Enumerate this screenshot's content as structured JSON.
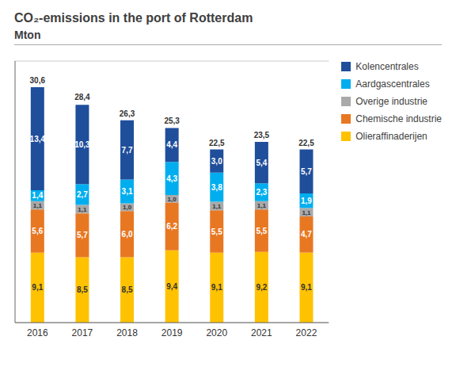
{
  "chart_data": {
    "type": "bar",
    "title": "CO₂-emissions in the port of Rotterdam",
    "subtitle": "Mton",
    "categories": [
      "2016",
      "2017",
      "2018",
      "2019",
      "2020",
      "2021",
      "2022"
    ],
    "series": [
      {
        "name": "Olieraffinaderijen",
        "color": "#FFC200",
        "values": [
          9.1,
          8.5,
          8.5,
          9.4,
          9.1,
          9.2,
          9.1
        ],
        "value_labels": [
          "9,1",
          "8,5",
          "8,5",
          "9,4",
          "9,1",
          "9,2",
          "9,1"
        ]
      },
      {
        "name": "Chemische industrie",
        "color": "#E87722",
        "values": [
          5.6,
          5.7,
          6.0,
          6.2,
          5.5,
          5.5,
          4.7
        ],
        "value_labels": [
          "5,6",
          "5,7",
          "6,0",
          "6,2",
          "5,5",
          "5,5",
          "4,7"
        ]
      },
      {
        "name": "Overige industrie",
        "color": "#A9A9A9",
        "values": [
          1.1,
          1.1,
          1.0,
          1.0,
          1.1,
          1.1,
          1.1
        ],
        "value_labels": [
          "1,1",
          "1,1",
          "1,0",
          "1,0",
          "1,1",
          "1,1",
          "1,1"
        ]
      },
      {
        "name": "Aardgascentrales",
        "color": "#00AEEF",
        "values": [
          1.4,
          2.7,
          3.1,
          4.3,
          3.8,
          2.3,
          1.9
        ],
        "value_labels": [
          "1,4",
          "2,7",
          "3,1",
          "4,3",
          "3,8",
          "2,3",
          "1,9"
        ]
      },
      {
        "name": "Kolencentrales",
        "color": "#1F4E9B",
        "values": [
          13.4,
          10.3,
          7.7,
          4.4,
          3.0,
          5.4,
          5.7
        ],
        "value_labels": [
          "13,4",
          "10,3",
          "7,7",
          "4,4",
          "3,0",
          "5,4",
          "5,7"
        ]
      }
    ],
    "totals": [
      30.6,
      28.4,
      26.3,
      25.3,
      22.5,
      23.5,
      22.5
    ],
    "total_labels": [
      "30,6",
      "28,4",
      "26,3",
      "25,3",
      "22,5",
      "23,5",
      "22,5"
    ],
    "stacked": true,
    "data_labels": true,
    "ylim": [
      0,
      34
    ],
    "yticks": [
      0,
      5,
      10,
      15,
      20,
      25,
      30
    ],
    "grid": true,
    "legend": "right",
    "tick_labels": "x"
  }
}
